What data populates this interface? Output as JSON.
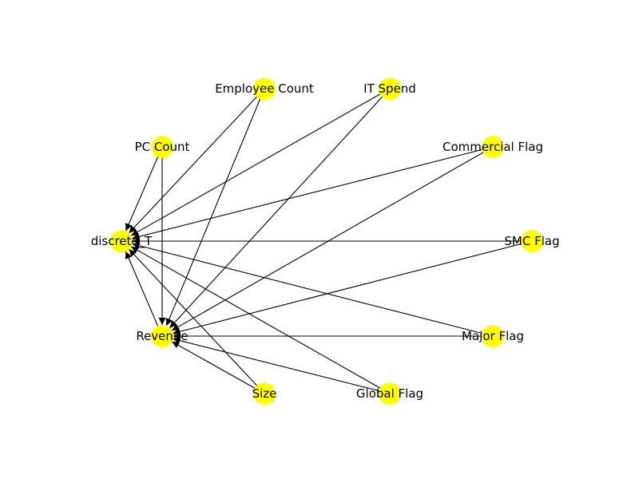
{
  "graph": {
    "node_color": "#ffff00",
    "edge_color": "#000000",
    "nodes": [
      {
        "id": "discrete_T",
        "label": "discrete_T"
      },
      {
        "id": "revenue",
        "label": "Revenue"
      },
      {
        "id": "pc_count",
        "label": "PC Count"
      },
      {
        "id": "employee_count",
        "label": "Employee Count"
      },
      {
        "id": "it_spend",
        "label": "IT Spend"
      },
      {
        "id": "commercial_flag",
        "label": "Commercial Flag"
      },
      {
        "id": "smc_flag",
        "label": "SMC Flag"
      },
      {
        "id": "major_flag",
        "label": "Major Flag"
      },
      {
        "id": "global_flag",
        "label": "Global Flag"
      },
      {
        "id": "size",
        "label": "Size"
      }
    ],
    "edges": [
      {
        "source": "pc_count",
        "target": "discrete_T"
      },
      {
        "source": "pc_count",
        "target": "revenue"
      },
      {
        "source": "employee_count",
        "target": "discrete_T"
      },
      {
        "source": "employee_count",
        "target": "revenue"
      },
      {
        "source": "it_spend",
        "target": "discrete_T"
      },
      {
        "source": "it_spend",
        "target": "revenue"
      },
      {
        "source": "commercial_flag",
        "target": "discrete_T"
      },
      {
        "source": "commercial_flag",
        "target": "revenue"
      },
      {
        "source": "smc_flag",
        "target": "discrete_T"
      },
      {
        "source": "smc_flag",
        "target": "revenue"
      },
      {
        "source": "major_flag",
        "target": "discrete_T"
      },
      {
        "source": "major_flag",
        "target": "revenue"
      },
      {
        "source": "global_flag",
        "target": "discrete_T"
      },
      {
        "source": "global_flag",
        "target": "revenue"
      },
      {
        "source": "size",
        "target": "discrete_T"
      },
      {
        "source": "size",
        "target": "revenue"
      },
      {
        "source": "revenue",
        "target": "discrete_T"
      }
    ]
  }
}
